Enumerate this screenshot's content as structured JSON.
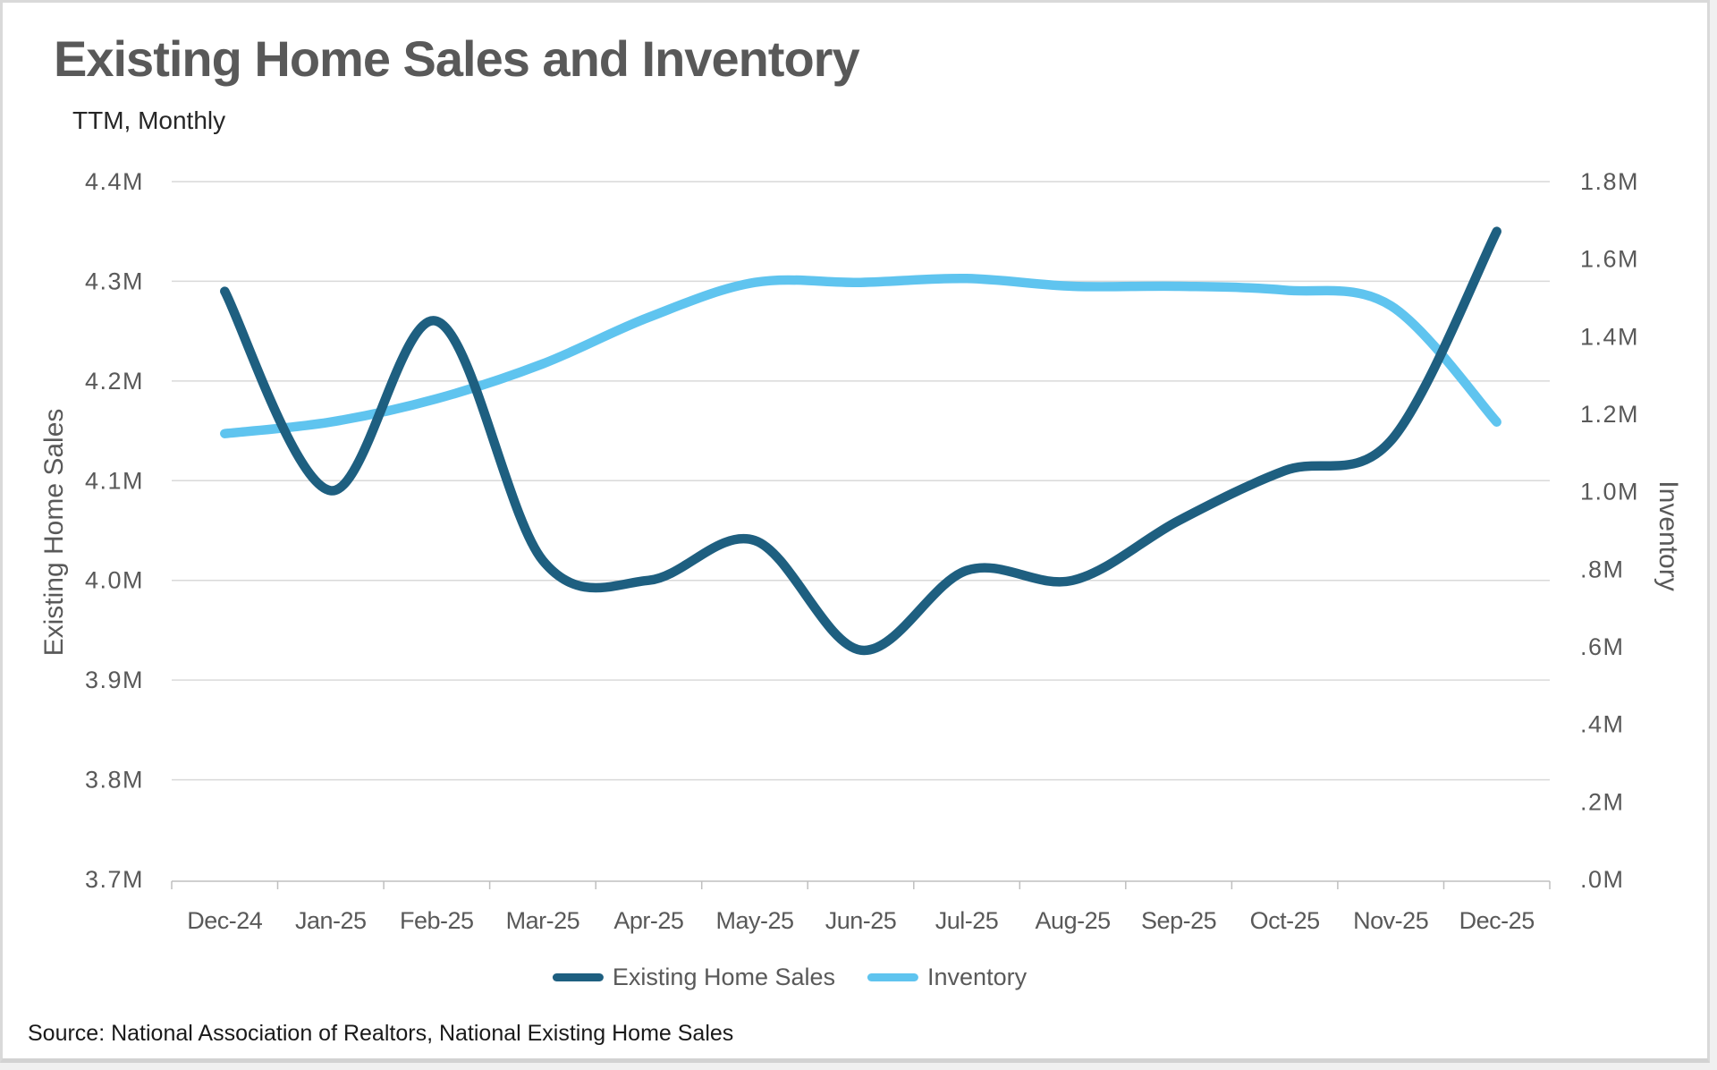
{
  "header": {
    "title": "Existing Home Sales and Inventory",
    "subtitle": "TTM, Monthly"
  },
  "source": "Source: National Association of Realtors, National Existing Home Sales",
  "chart_data": {
    "type": "line",
    "smooth": true,
    "grid": true,
    "legend_position": "bottom",
    "categories": [
      "Dec-24",
      "Jan-25",
      "Feb-25",
      "Mar-25",
      "Apr-25",
      "May-25",
      "Jun-25",
      "Jul-25",
      "Aug-25",
      "Sep-25",
      "Oct-25",
      "Nov-25",
      "Dec-25"
    ],
    "series": [
      {
        "name": "Existing Home Sales",
        "axis": "left",
        "color": "#1e5f80",
        "values": [
          4.29,
          4.09,
          4.26,
          4.02,
          4.0,
          4.04,
          3.93,
          4.01,
          4.0,
          4.06,
          4.11,
          4.14,
          4.35
        ]
      },
      {
        "name": "Inventory",
        "axis": "right",
        "color": "#5fc4ef",
        "values": [
          1.15,
          1.18,
          1.24,
          1.33,
          1.45,
          1.54,
          1.54,
          1.55,
          1.53,
          1.53,
          1.52,
          1.48,
          1.18
        ]
      }
    ],
    "left_axis": {
      "label": "Existing Home Sales",
      "min": 3.7,
      "max": 4.4,
      "step": 0.1,
      "tick_labels": [
        "4.4M",
        "4.3M",
        "4.2M",
        "4.1M",
        "4.0M",
        "3.9M",
        "3.8M",
        "3.7M"
      ]
    },
    "right_axis": {
      "label": "Inventory",
      "min": 0.0,
      "max": 1.8,
      "step": 0.2,
      "tick_labels": [
        "1.8M",
        "1.6M",
        "1.4M",
        "1.2M",
        "1.0M",
        ".8M",
        ".6M",
        ".4M",
        ".2M",
        ".0M"
      ]
    }
  },
  "colors": {
    "title": "#595959",
    "tick_text": "#595959",
    "gridline": "#d9d9d9",
    "axis_line": "#bfbfbf",
    "sales_line": "#1e5f80",
    "inventory_line": "#5fc4ef"
  }
}
